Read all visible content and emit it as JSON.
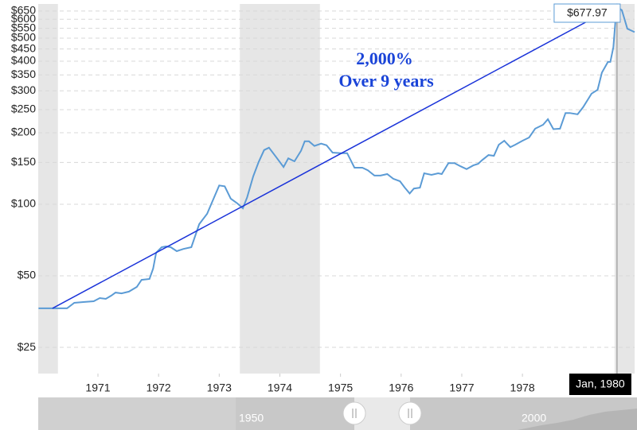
{
  "chart_data": {
    "type": "line",
    "xlim": [
      1970.015,
      1979.85
    ],
    "xticks": [
      1971,
      1972,
      1973,
      1974,
      1975,
      1976,
      1977,
      1978
    ],
    "ylim": [
      19.4,
      696
    ],
    "log_scale": true,
    "grid": true,
    "yticks": [
      {
        "value": 25,
        "label": "$25"
      },
      {
        "value": 50,
        "label": "$50"
      },
      {
        "value": 100,
        "label": "$100"
      },
      {
        "value": 150,
        "label": "$150"
      },
      {
        "value": 200,
        "label": "$200"
      },
      {
        "value": 250,
        "label": "$250"
      },
      {
        "value": 300,
        "label": "$300"
      },
      {
        "value": 350,
        "label": "$350"
      },
      {
        "value": 400,
        "label": "$400"
      },
      {
        "value": 450,
        "label": "$450"
      },
      {
        "value": 500,
        "label": "$500"
      },
      {
        "value": 550,
        "label": "$550"
      },
      {
        "value": 600,
        "label": "$600"
      },
      {
        "value": 650,
        "label": "$650"
      }
    ],
    "shaded_ranges": [
      [
        1970.015,
        1970.34
      ],
      [
        1973.34,
        1974.66
      ],
      [
        1979.52,
        1979.85
      ]
    ],
    "shade_color": "#e6e6e6",
    "x": [
      1970.02,
      1970.49,
      1970.61,
      1970.76,
      1970.93,
      1971.03,
      1971.13,
      1971.22,
      1971.29,
      1971.39,
      1971.51,
      1971.64,
      1971.72,
      1971.85,
      1971.91,
      1971.96,
      1972.05,
      1972.12,
      1972.2,
      1972.3,
      1972.41,
      1972.54,
      1972.67,
      1972.8,
      1973.0,
      1973.09,
      1973.19,
      1973.3,
      1973.39,
      1973.46,
      1973.56,
      1973.65,
      1973.74,
      1973.82,
      1973.93,
      1974.06,
      1974.14,
      1974.24,
      1974.35,
      1974.41,
      1974.48,
      1974.57,
      1974.68,
      1974.77,
      1974.87,
      1975.01,
      1975.11,
      1975.23,
      1975.36,
      1975.45,
      1975.56,
      1975.66,
      1975.77,
      1975.87,
      1975.98,
      1976.06,
      1976.14,
      1976.21,
      1976.31,
      1976.38,
      1976.5,
      1976.61,
      1976.67,
      1976.78,
      1976.88,
      1976.98,
      1977.08,
      1977.19,
      1977.27,
      1977.33,
      1977.44,
      1977.53,
      1977.61,
      1977.7,
      1977.8,
      1977.88,
      1978.0,
      1978.11,
      1978.21,
      1978.34,
      1978.42,
      1978.51,
      1978.62,
      1978.71,
      1978.78,
      1978.91,
      1979.0,
      1979.08,
      1979.14,
      1979.24,
      1979.31,
      1979.41,
      1979.45,
      1979.5,
      1979.54,
      1979.56,
      1979.64,
      1979.73,
      1979.85
    ],
    "series": [
      {
        "color": "#5b9bd5",
        "values": [
          36.5,
          36.5,
          38.5,
          38.8,
          39.1,
          40.3,
          40.0,
          41.3,
          42.5,
          42.2,
          42.9,
          44.9,
          48.1,
          48.5,
          53.6,
          62.5,
          66.0,
          66.5,
          66.0,
          63.5,
          64.9,
          66.0,
          82.5,
          91.2,
          120,
          119,
          105.6,
          100.8,
          96.2,
          107,
          131,
          150.5,
          169,
          173,
          159,
          143.5,
          156,
          151.5,
          168,
          184,
          184,
          176,
          180,
          177,
          165,
          164,
          164,
          142.5,
          142.5,
          139,
          132,
          132,
          134,
          128,
          125,
          117.5,
          111,
          116.5,
          117.5,
          135,
          133,
          135,
          134,
          149,
          149,
          144.5,
          140.5,
          145.7,
          148,
          153,
          161,
          160,
          178,
          185,
          174,
          178,
          185,
          191,
          208,
          216,
          228,
          207,
          208,
          242,
          242,
          239,
          256,
          276,
          292,
          303,
          358,
          397,
          397,
          457,
          620,
          677.97,
          655,
          548,
          530
        ]
      }
    ],
    "trend_line": {
      "color": "#1a33d9",
      "x": [
        1970.25,
        1979.52
      ],
      "values": [
        36.5,
        677.97
      ]
    },
    "annotations": [
      "2,000%",
      "Over 9 years"
    ],
    "tooltip": {
      "label": "$677.97",
      "date": "Jan, 1980"
    },
    "navigator": {
      "labels": [
        "1950",
        "2000"
      ]
    }
  }
}
